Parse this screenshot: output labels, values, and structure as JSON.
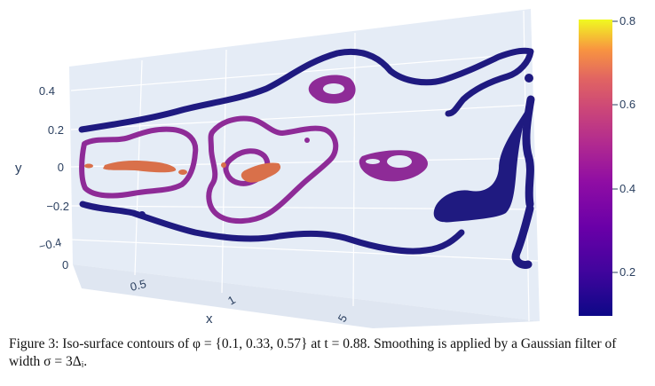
{
  "chart_data": {
    "type": "3d-isosurface",
    "x_axis": {
      "label": "x",
      "ticks": [
        "0",
        "0.5",
        "1",
        "5"
      ]
    },
    "y_axis": {
      "label": "y",
      "ticks": [
        "0.4",
        "0.2",
        "0",
        "−0.2",
        "−0.4"
      ]
    },
    "colorbar": {
      "ticks": [
        "0.8",
        "0.6",
        "0.4",
        "0.2"
      ],
      "range": [
        0.1,
        0.85
      ],
      "colorscale": "plasma"
    },
    "isosurface_levels": [
      0.1,
      0.33,
      0.57
    ],
    "colors": {
      "level_low": "#1f1a80",
      "level_mid": "#8e2b97",
      "level_high": "#d9704a",
      "background": "#e5ecf6"
    }
  },
  "caption": {
    "label": "Figure 3:",
    "text": "Iso-surface contours of φ = {0.1, 0.33, 0.57} at t = 0.88. Smoothing is applied by a Gaussian filter of width σ = 3Δᵢ."
  }
}
